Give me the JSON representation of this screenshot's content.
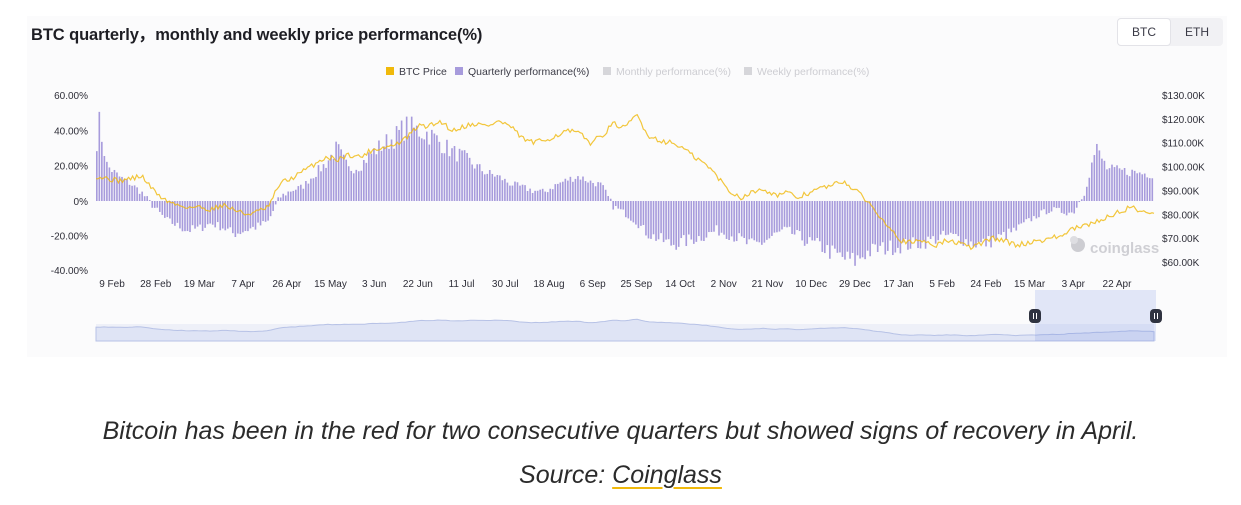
{
  "header": {
    "title": "BTC quarterly，monthly and weekly price performance(%)"
  },
  "toggle": {
    "btc": "BTC",
    "eth": "ETH",
    "active": "BTC"
  },
  "watermark": "coinglass",
  "caption": {
    "line1": "Bitcoin has been in the red for two consecutive quarters but showed signs of recovery in April.",
    "source_prefix": "Source: ",
    "source_link": "Coinglass"
  },
  "colors": {
    "price": "#f0b90b",
    "quarterly": "#a79bdc",
    "inactive": "#cfcfd4"
  },
  "chart_data": {
    "type": "bar",
    "title": "BTC quarterly，monthly and weekly price performance(%)",
    "legend": [
      {
        "name": "BTC Price",
        "color": "#f0b90b",
        "active": true
      },
      {
        "name": "Quarterly performance(%)",
        "color": "#a79bdc",
        "active": true
      },
      {
        "name": "Monthly performance(%)",
        "color": "#d6d6da",
        "active": false
      },
      {
        "name": "Weekly performance(%)",
        "color": "#d6d6da",
        "active": false
      }
    ],
    "legend_position": "top-center",
    "x_ticks": [
      "9 Feb",
      "28 Feb",
      "19 Mar",
      "7 Apr",
      "26 Apr",
      "15 May",
      "3 Jun",
      "22 Jun",
      "11 Jul",
      "30 Jul",
      "18 Aug",
      "6 Sep",
      "25 Sep",
      "14 Oct",
      "2 Nov",
      "21 Nov",
      "10 Dec",
      "29 Dec",
      "17 Jan",
      "5 Feb",
      "24 Feb",
      "15 Mar",
      "3 Apr",
      "22 Apr"
    ],
    "y_left": {
      "ticks": [
        "60.00%",
        "40.00%",
        "20.00%",
        "0%",
        "-20.00%",
        "-40.00%"
      ],
      "range": [
        -40,
        60
      ]
    },
    "y_right": {
      "ticks": [
        "$130.00K",
        "$120.00K",
        "$110.00K",
        "$100.00K",
        "$90.00K",
        "$80.00K",
        "$70.00K",
        "$60.00K"
      ],
      "range": [
        58,
        131
      ]
    },
    "grid": false,
    "x_range": [
      0,
      92
    ],
    "quarterly_anchors": [
      [
        0,
        28
      ],
      [
        0.3,
        45
      ],
      [
        1,
        20
      ],
      [
        2,
        14
      ],
      [
        3,
        10
      ],
      [
        4,
        5
      ],
      [
        5,
        -3
      ],
      [
        6,
        -10
      ],
      [
        7,
        -14
      ],
      [
        8,
        -17
      ],
      [
        9,
        -16
      ],
      [
        10,
        -13
      ],
      [
        11,
        -15
      ],
      [
        12,
        -19
      ],
      [
        13,
        -17
      ],
      [
        14,
        -15
      ],
      [
        15,
        -12
      ],
      [
        16,
        2
      ],
      [
        17,
        6
      ],
      [
        18,
        8
      ],
      [
        19,
        15
      ],
      [
        20,
        21
      ],
      [
        21,
        30
      ],
      [
        22,
        18
      ],
      [
        23,
        20
      ],
      [
        24,
        27
      ],
      [
        25,
        32
      ],
      [
        26,
        36
      ],
      [
        27,
        42
      ],
      [
        28,
        40
      ],
      [
        29,
        38
      ],
      [
        30,
        33
      ],
      [
        31,
        28
      ],
      [
        32,
        25
      ],
      [
        33,
        20
      ],
      [
        34,
        16
      ],
      [
        35,
        14
      ],
      [
        36,
        10
      ],
      [
        37,
        8
      ],
      [
        38,
        6
      ],
      [
        39,
        5
      ],
      [
        40,
        9
      ],
      [
        41,
        12
      ],
      [
        42,
        14
      ],
      [
        43,
        11
      ],
      [
        44,
        9
      ],
      [
        45,
        -3
      ],
      [
        46,
        -7
      ],
      [
        47,
        -12
      ],
      [
        48,
        -19
      ],
      [
        49,
        -22
      ],
      [
        50,
        -25
      ],
      [
        51,
        -24
      ],
      [
        52,
        -22
      ],
      [
        53,
        -20
      ],
      [
        54,
        -17
      ],
      [
        55,
        -19
      ],
      [
        56,
        -22
      ],
      [
        57,
        -26
      ],
      [
        58,
        -24
      ],
      [
        59,
        -20
      ],
      [
        60,
        -17
      ],
      [
        61,
        -20
      ],
      [
        62,
        -24
      ],
      [
        63,
        -26
      ],
      [
        64,
        -30
      ],
      [
        65,
        -33
      ],
      [
        66,
        -35
      ],
      [
        67,
        -30
      ],
      [
        68,
        -28
      ],
      [
        69,
        -27
      ],
      [
        70,
        -26
      ],
      [
        71,
        -25
      ],
      [
        72,
        -24
      ],
      [
        73,
        -22
      ],
      [
        74,
        -20
      ],
      [
        75,
        -21
      ],
      [
        76,
        -24
      ],
      [
        77,
        -25
      ],
      [
        78,
        -23
      ],
      [
        79,
        -20
      ],
      [
        80,
        -17
      ],
      [
        81,
        -12
      ],
      [
        82,
        -8
      ],
      [
        83,
        -5
      ],
      [
        84,
        -6
      ],
      [
        85,
        -7
      ],
      [
        86,
        5
      ],
      [
        87,
        30
      ],
      [
        88,
        18
      ],
      [
        92,
        15
      ]
    ],
    "price_anchors_k": [
      [
        0,
        96
      ],
      [
        1,
        95
      ],
      [
        2,
        94
      ],
      [
        3,
        95
      ],
      [
        4,
        96
      ],
      [
        5,
        90
      ],
      [
        6,
        86
      ],
      [
        7,
        84
      ],
      [
        8,
        83
      ],
      [
        9,
        83
      ],
      [
        10,
        82
      ],
      [
        11,
        84
      ],
      [
        12,
        82
      ],
      [
        13,
        80
      ],
      [
        14,
        81
      ],
      [
        15,
        83
      ],
      [
        16,
        93
      ],
      [
        17,
        95
      ],
      [
        18,
        98
      ],
      [
        19,
        101
      ],
      [
        20,
        104
      ],
      [
        21,
        103
      ],
      [
        22,
        105
      ],
      [
        23,
        104
      ],
      [
        24,
        107
      ],
      [
        25,
        108
      ],
      [
        26,
        109
      ],
      [
        27,
        112
      ],
      [
        28,
        117
      ],
      [
        29,
        117
      ],
      [
        30,
        119
      ],
      [
        31,
        115
      ],
      [
        32,
        117
      ],
      [
        33,
        118
      ],
      [
        34,
        117
      ],
      [
        35,
        119
      ],
      [
        36,
        117
      ],
      [
        37,
        112
      ],
      [
        38,
        110
      ],
      [
        39,
        111
      ],
      [
        40,
        113
      ],
      [
        41,
        115
      ],
      [
        42,
        114
      ],
      [
        43,
        110
      ],
      [
        44,
        113
      ],
      [
        45,
        118
      ],
      [
        46,
        116
      ],
      [
        47,
        122
      ],
      [
        48,
        113
      ],
      [
        49,
        111
      ],
      [
        50,
        110
      ],
      [
        51,
        108
      ],
      [
        52,
        104
      ],
      [
        53,
        101
      ],
      [
        54,
        96
      ],
      [
        55,
        90
      ],
      [
        56,
        87
      ],
      [
        57,
        89
      ],
      [
        58,
        91
      ],
      [
        59,
        88
      ],
      [
        60,
        89
      ],
      [
        61,
        87
      ],
      [
        62,
        89
      ],
      [
        63,
        91
      ],
      [
        64,
        92
      ],
      [
        65,
        94
      ],
      [
        66,
        90
      ],
      [
        67,
        86
      ],
      [
        68,
        80
      ],
      [
        69,
        75
      ],
      [
        70,
        69
      ],
      [
        71,
        68
      ],
      [
        72,
        69
      ],
      [
        73,
        67
      ],
      [
        74,
        69
      ],
      [
        75,
        68
      ],
      [
        76,
        66
      ],
      [
        77,
        68
      ],
      [
        78,
        70
      ],
      [
        79,
        69
      ],
      [
        80,
        67
      ],
      [
        81,
        68
      ],
      [
        82,
        69
      ],
      [
        83,
        70
      ],
      [
        84,
        71
      ],
      [
        85,
        74
      ],
      [
        86,
        75
      ],
      [
        87,
        77
      ],
      [
        88,
        79
      ],
      [
        90,
        83
      ],
      [
        92,
        80
      ]
    ]
  }
}
